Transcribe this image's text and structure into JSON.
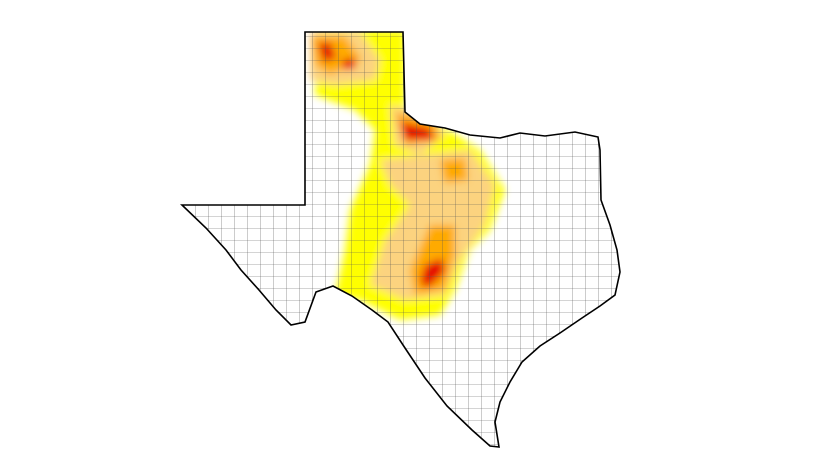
{
  "map": {
    "colors": {
      "background": "#ffffff",
      "outline": "#000000",
      "county_lines": "#555555",
      "abnormally_dry": "#ffff00",
      "moderate_drought": "#fcd37f",
      "severe_drought": "#ffaa00",
      "extreme_drought": "#e60000"
    }
  }
}
